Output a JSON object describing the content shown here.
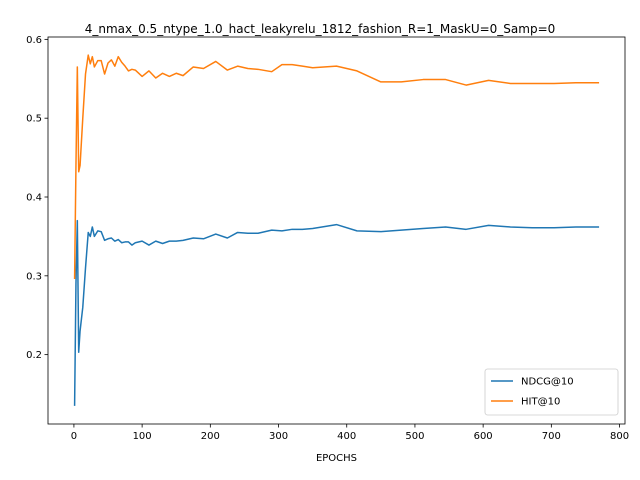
{
  "chart_data": {
    "type": "line",
    "title": "4_nmax_0.5_ntype_1.0_hact_leakyrelu_1812_fashion_R=1_MaskU=0_Samp=0",
    "xlabel": "EPOCHS",
    "ylabel": "",
    "xlim": [
      -38,
      808
    ],
    "ylim": [
      0.112,
      0.603
    ],
    "xticks": [
      0,
      100,
      200,
      300,
      400,
      500,
      600,
      700,
      800
    ],
    "yticks": [
      0.2,
      0.3,
      0.4,
      0.5,
      0.6
    ],
    "ytick_labels": [
      "0.2",
      "0.3",
      "0.4",
      "0.5",
      "0.6"
    ],
    "grid": false,
    "legend_position": "lower-right",
    "series": [
      {
        "name": "NDCG@10",
        "color": "#1f77b4",
        "x": [
          1,
          3,
          5,
          7,
          9,
          13,
          17,
          21,
          24,
          27,
          30,
          35,
          40,
          45,
          50,
          55,
          60,
          65,
          70,
          75,
          80,
          85,
          90,
          100,
          110,
          120,
          130,
          140,
          150,
          160,
          175,
          190,
          208,
          225,
          240,
          255,
          270,
          290,
          305,
          320,
          335,
          350,
          385,
          415,
          450,
          480,
          512,
          545,
          575,
          608,
          640,
          672,
          704,
          736,
          770
        ],
        "values": [
          0.135,
          0.29,
          0.37,
          0.203,
          0.23,
          0.26,
          0.31,
          0.355,
          0.35,
          0.362,
          0.35,
          0.357,
          0.356,
          0.345,
          0.347,
          0.348,
          0.344,
          0.346,
          0.342,
          0.343,
          0.343,
          0.339,
          0.342,
          0.344,
          0.339,
          0.344,
          0.341,
          0.344,
          0.344,
          0.345,
          0.348,
          0.347,
          0.353,
          0.348,
          0.355,
          0.354,
          0.354,
          0.358,
          0.357,
          0.359,
          0.359,
          0.36,
          0.365,
          0.357,
          0.356,
          0.358,
          0.36,
          0.362,
          0.359,
          0.364,
          0.362,
          0.361,
          0.361,
          0.362,
          0.362
        ]
      },
      {
        "name": "HIT@10",
        "color": "#ff7f0e",
        "x": [
          1,
          3,
          5,
          7,
          9,
          13,
          17,
          21,
          24,
          27,
          30,
          35,
          40,
          45,
          50,
          55,
          60,
          65,
          70,
          75,
          80,
          85,
          90,
          100,
          110,
          120,
          130,
          140,
          150,
          160,
          175,
          190,
          208,
          225,
          240,
          255,
          270,
          290,
          305,
          320,
          335,
          350,
          385,
          415,
          450,
          480,
          512,
          545,
          575,
          608,
          640,
          672,
          704,
          736,
          770
        ],
        "values": [
          0.296,
          0.44,
          0.565,
          0.432,
          0.44,
          0.5,
          0.556,
          0.58,
          0.569,
          0.578,
          0.565,
          0.573,
          0.573,
          0.556,
          0.57,
          0.574,
          0.566,
          0.578,
          0.571,
          0.566,
          0.56,
          0.562,
          0.561,
          0.553,
          0.56,
          0.551,
          0.557,
          0.553,
          0.557,
          0.554,
          0.565,
          0.563,
          0.572,
          0.561,
          0.566,
          0.563,
          0.562,
          0.559,
          0.568,
          0.568,
          0.566,
          0.564,
          0.566,
          0.56,
          0.546,
          0.546,
          0.549,
          0.549,
          0.542,
          0.548,
          0.544,
          0.544,
          0.544,
          0.545,
          0.545
        ]
      }
    ]
  }
}
